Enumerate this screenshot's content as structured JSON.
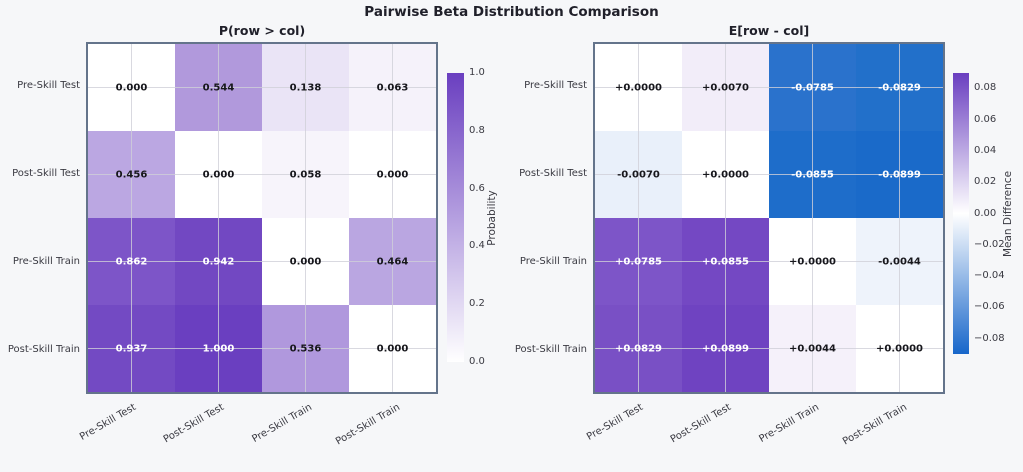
{
  "figure": {
    "title": "Pairwise Beta Distribution Comparison",
    "background_color": "#f6f7f9",
    "axes_border_color": "#64748b",
    "grid_line_color": "#d0d0d8",
    "accent_purple": "#6a3fc0",
    "accent_blue": "#1766ca"
  },
  "chart_data": [
    {
      "type": "heatmap",
      "title": "P(row > col)",
      "row_labels": [
        "Pre-Skill Test",
        "Post-Skill Test",
        "Pre-Skill Train",
        "Post-Skill Train"
      ],
      "col_labels": [
        "Pre-Skill Test",
        "Post-Skill Test",
        "Pre-Skill Train",
        "Post-Skill Train"
      ],
      "values": [
        [
          0.0,
          0.544,
          0.138,
          0.063
        ],
        [
          0.456,
          0.0,
          0.058,
          0.0
        ],
        [
          0.862,
          0.942,
          0.0,
          0.464
        ],
        [
          0.937,
          1.0,
          0.536,
          0.0
        ]
      ],
      "cell_labels": [
        [
          "0.000",
          "0.544",
          "0.138",
          "0.063"
        ],
        [
          "0.456",
          "0.000",
          "0.058",
          "0.000"
        ],
        [
          "0.862",
          "0.942",
          "0.000",
          "0.464"
        ],
        [
          "0.937",
          "1.000",
          "0.536",
          "0.000"
        ]
      ],
      "cell_colors": [
        [
          "#ffffff",
          "#b199dc",
          "#eae4f6",
          "#f5f2fa"
        ],
        [
          "#bba7e2",
          "#ffffff",
          "#f7f4fb",
          "#ffffff"
        ],
        [
          "#7d55c8",
          "#7248c2",
          "#ffffff",
          "#baa6e1"
        ],
        [
          "#734ac3",
          "#6a3fc0",
          "#b098dd",
          "#ffffff"
        ]
      ],
      "white_text_abs_threshold": 0.7,
      "colorbar": {
        "label": "Probability",
        "vmin": 0.0,
        "vmax": 1.0,
        "gradient_stops": [
          "#6a3fc0",
          "#ffffff"
        ],
        "ticks": [
          {
            "label": "1.0",
            "value": 1.0
          },
          {
            "label": "0.8",
            "value": 0.8
          },
          {
            "label": "0.6",
            "value": 0.6
          },
          {
            "label": "0.4",
            "value": 0.4
          },
          {
            "label": "0.2",
            "value": 0.2
          },
          {
            "label": "0.0",
            "value": 0.0
          }
        ]
      }
    },
    {
      "type": "heatmap",
      "title": "E[row - col]",
      "row_labels": [
        "Pre-Skill Test",
        "Post-Skill Test",
        "Pre-Skill Train",
        "Post-Skill Train"
      ],
      "col_labels": [
        "Pre-Skill Test",
        "Post-Skill Test",
        "Pre-Skill Train",
        "Post-Skill Train"
      ],
      "values": [
        [
          0.0,
          0.007,
          -0.0785,
          -0.0829
        ],
        [
          -0.007,
          0.0,
          -0.0855,
          -0.0899
        ],
        [
          0.0785,
          0.0855,
          0.0,
          -0.0044
        ],
        [
          0.0829,
          0.0899,
          0.0044,
          0.0
        ]
      ],
      "cell_labels": [
        [
          "+0.0000",
          "+0.0070",
          "-0.0785",
          "-0.0829"
        ],
        [
          "-0.0070",
          "+0.0000",
          "-0.0855",
          "-0.0899"
        ],
        [
          "+0.0785",
          "+0.0855",
          "+0.0000",
          "-0.0044"
        ],
        [
          "+0.0829",
          "+0.0899",
          "+0.0044",
          "+0.0000"
        ]
      ],
      "cell_colors": [
        [
          "#ffffff",
          "#f2edf9",
          "#2a72cc",
          "#2270ca"
        ],
        [
          "#e9f0fa",
          "#ffffff",
          "#1e6dca",
          "#1a6ac9"
        ],
        [
          "#7d55c8",
          "#7448c3",
          "#ffffff",
          "#eef3fb"
        ],
        [
          "#7950c5",
          "#6f43c1",
          "#f5f1fa",
          "#ffffff"
        ]
      ],
      "white_text_abs_threshold": 0.05,
      "colorbar": {
        "label": "Mean Difference",
        "vmin": -0.0899,
        "vmax": 0.0899,
        "gradient_stops": [
          "#6a3fc0",
          "#ffffff",
          "#1766ca"
        ],
        "ticks": [
          {
            "label": "0.08",
            "value": 0.08
          },
          {
            "label": "0.06",
            "value": 0.06
          },
          {
            "label": "0.04",
            "value": 0.04
          },
          {
            "label": "0.02",
            "value": 0.02
          },
          {
            "label": "0.00",
            "value": 0.0
          },
          {
            "label": "−0.02",
            "value": -0.02
          },
          {
            "label": "−0.04",
            "value": -0.04
          },
          {
            "label": "−0.06",
            "value": -0.06
          },
          {
            "label": "−0.08",
            "value": -0.08
          }
        ]
      }
    }
  ]
}
